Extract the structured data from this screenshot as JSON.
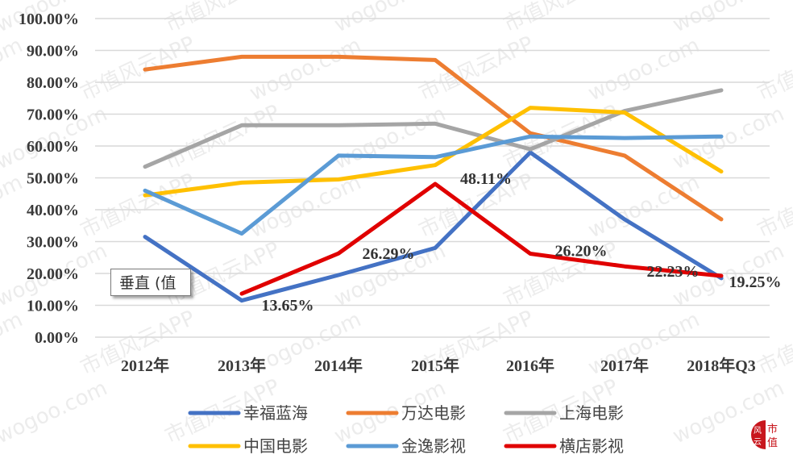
{
  "chart_data": {
    "type": "line",
    "title": "",
    "xlabel": "",
    "ylabel": "",
    "categories": [
      "2012年",
      "2013年",
      "2014年",
      "2015年",
      "2016年",
      "2017年",
      "2018年Q3"
    ],
    "yticks": [
      "0.00%",
      "10.00%",
      "20.00%",
      "30.00%",
      "40.00%",
      "50.00%",
      "60.00%",
      "70.00%",
      "80.00%",
      "90.00%",
      "100.00%"
    ],
    "ylim": [
      0,
      100
    ],
    "grid": true,
    "legend_position": "bottom",
    "series": [
      {
        "name": "幸福蓝海",
        "color": "#4472C4",
        "values": [
          31.5,
          11.5,
          19.5,
          28.0,
          58.0,
          37.0,
          18.5
        ]
      },
      {
        "name": "万达电影",
        "color": "#ED7D31",
        "values": [
          84.0,
          88.0,
          88.0,
          87.0,
          64.0,
          57.0,
          37.0
        ]
      },
      {
        "name": "上海电影",
        "color": "#A5A5A5",
        "values": [
          53.5,
          66.5,
          66.5,
          67.0,
          59.0,
          71.0,
          77.5
        ]
      },
      {
        "name": "中国电影",
        "color": "#FFC000",
        "values": [
          44.5,
          48.5,
          49.5,
          54.0,
          72.0,
          70.5,
          52.0
        ]
      },
      {
        "name": "金逸影视",
        "color": "#5B9BD5",
        "values": [
          46.0,
          32.5,
          57.0,
          56.5,
          63.0,
          62.5,
          63.0
        ]
      },
      {
        "name": "横店影视",
        "color": "#E00000",
        "values": [
          null,
          13.65,
          26.29,
          48.11,
          26.2,
          22.23,
          19.25
        ]
      }
    ],
    "annotations": [
      {
        "series": "横店影视",
        "category": "2013年",
        "text": "13.65%"
      },
      {
        "series": "横店影视",
        "category": "2014年",
        "text": "26.29%"
      },
      {
        "series": "横店影视",
        "category": "2015年",
        "text": "48.11%"
      },
      {
        "series": "横店影视",
        "category": "2016年",
        "text": "26.20%"
      },
      {
        "series": "横店影视",
        "category": "2017年",
        "text": "22.23%"
      },
      {
        "series": "横店影视",
        "category": "2018年Q3",
        "text": "19.25%"
      }
    ]
  },
  "legend": {
    "rows": [
      [
        "幸福蓝海",
        "万达电影",
        "上海电影"
      ],
      [
        "中国电影",
        "金逸影视",
        "横店影视"
      ]
    ]
  },
  "tooltip": {
    "text": "垂直 (值"
  },
  "watermark": {
    "texts": [
      "wogoo.com",
      "市值风云APP"
    ]
  },
  "logo": {
    "left_text": "风云",
    "right_top": "市",
    "right_bottom": "值",
    "color": "#C8161D"
  }
}
